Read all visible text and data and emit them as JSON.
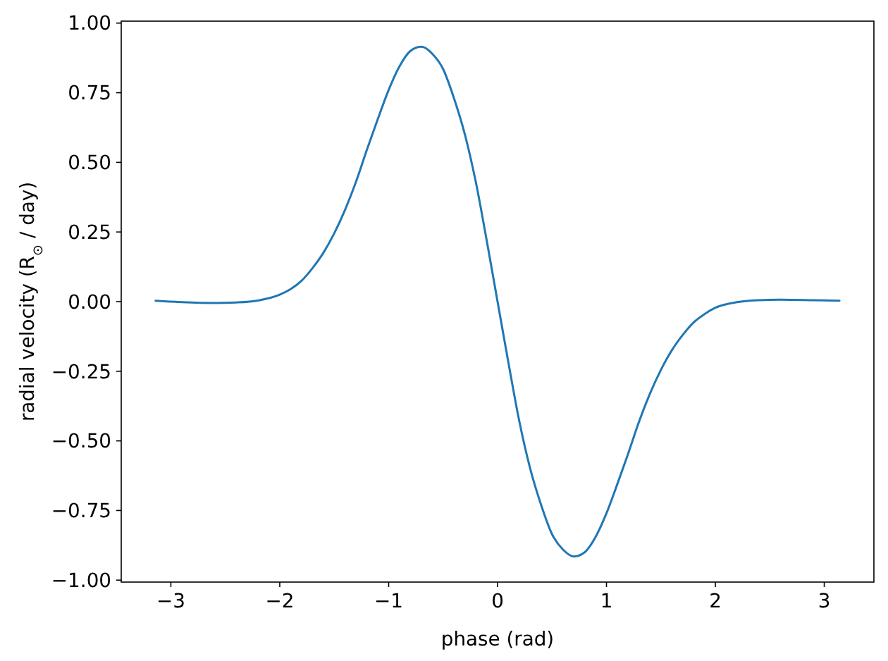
{
  "chart_data": {
    "type": "line",
    "xlabel": "phase (rad)",
    "ylabel": "radial velocity (R$_{⊙}$ / day)",
    "xlim": [
      -3.456,
      3.456
    ],
    "ylim": [
      -1.007,
      1.007
    ],
    "xticks": [
      {
        "value": -3,
        "label": "−3"
      },
      {
        "value": -2,
        "label": "−2"
      },
      {
        "value": -1,
        "label": "−1"
      },
      0,
      1,
      2,
      3
    ],
    "yticks": [
      {
        "value": -1,
        "label": "−1.00"
      },
      {
        "value": -0.75,
        "label": "−0.75"
      },
      {
        "value": -0.5,
        "label": "−0.50"
      },
      {
        "value": -0.25,
        "label": "−0.25"
      },
      {
        "value": 0,
        "label": "0.00"
      },
      {
        "value": 0.25,
        "label": "0.25"
      },
      {
        "value": 0.5,
        "label": "0.50"
      },
      {
        "value": 0.75,
        "label": "0.75"
      },
      {
        "value": 1,
        "label": "1.00"
      }
    ],
    "line_style": "solid",
    "series": [
      {
        "color": "#1f77b4",
        "x": [
          -3.14,
          -2.9,
          -2.6,
          -2.4,
          -2.2,
          -2.0,
          -1.9,
          -1.8,
          -1.7,
          -1.6,
          -1.5,
          -1.4,
          -1.3,
          -1.2,
          -1.1,
          -1.0,
          -0.9,
          -0.8,
          -0.7,
          -0.6,
          -0.5,
          -0.4,
          -0.3,
          -0.2,
          -0.1,
          0,
          0.1,
          0.2,
          0.3,
          0.4,
          0.5,
          0.6,
          0.7,
          0.8,
          0.9,
          1.0,
          1.1,
          1.2,
          1.3,
          1.4,
          1.5,
          1.6,
          1.7,
          1.8,
          1.9,
          2.0,
          2.2,
          2.4,
          2.6,
          2.9,
          3.14
        ],
        "values": [
          0.003,
          -0.002,
          -0.005,
          -0.003,
          0.004,
          0.025,
          0.045,
          0.075,
          0.12,
          0.175,
          0.245,
          0.33,
          0.43,
          0.545,
          0.655,
          0.76,
          0.845,
          0.9,
          0.915,
          0.89,
          0.835,
          0.73,
          0.6,
          0.43,
          0.22,
          0,
          -0.22,
          -0.43,
          -0.6,
          -0.73,
          -0.835,
          -0.89,
          -0.915,
          -0.9,
          -0.845,
          -0.76,
          -0.655,
          -0.545,
          -0.43,
          -0.33,
          -0.245,
          -0.175,
          -0.12,
          -0.075,
          -0.045,
          -0.022,
          -0.002,
          0.005,
          0.007,
          0.005,
          0.003
        ]
      }
    ]
  }
}
